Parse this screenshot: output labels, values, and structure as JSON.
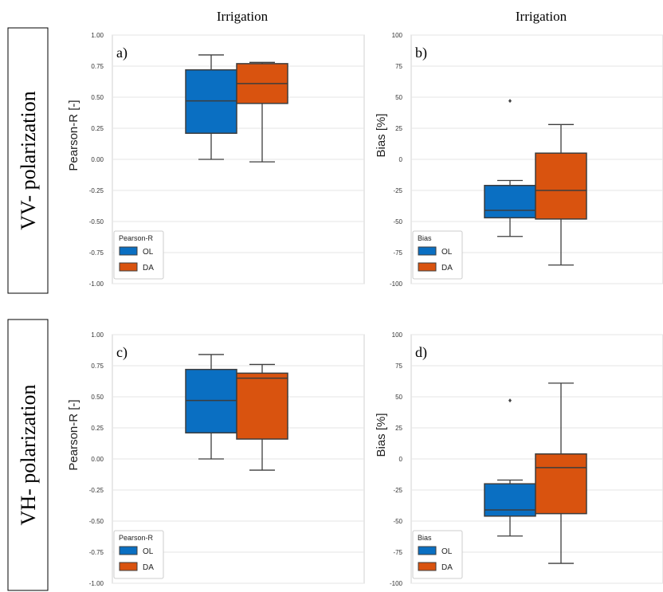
{
  "row_labels": [
    "VV- polarization",
    "VH- polarization"
  ],
  "colors": {
    "OL": "#0a6fc2",
    "DA": "#d9530f",
    "edge": "#3d3d3d",
    "grid": "#e6e6e6"
  },
  "chart_data": [
    {
      "type": "box",
      "panel_label": "a)",
      "title": "Irrigation",
      "xlabel": "",
      "ylabel": "Pearson-R [-]",
      "ylim": [
        -1.0,
        1.0
      ],
      "yticks": [
        "1.00",
        "0.75",
        "0.50",
        "0.25",
        "0.00",
        "-0.25",
        "-0.50",
        "-0.75",
        "-1.00"
      ],
      "legend": {
        "title": "Pearson-R",
        "entries": [
          "OL",
          "DA"
        ],
        "placement": "lower-left"
      },
      "series": [
        {
          "name": "OL",
          "whisker_low": 0.0,
          "q1": 0.21,
          "median": 0.47,
          "q3": 0.72,
          "whisker_high": 0.84,
          "outliers": []
        },
        {
          "name": "DA",
          "whisker_low": -0.02,
          "q1": 0.45,
          "median": 0.61,
          "q3": 0.77,
          "whisker_high": 0.78,
          "outliers": []
        }
      ]
    },
    {
      "type": "box",
      "panel_label": "b)",
      "title": "Irrigation",
      "xlabel": "",
      "ylabel": "Bias [%]",
      "ylim": [
        -100,
        100
      ],
      "yticks": [
        "100",
        "75",
        "50",
        "25",
        "0",
        "-25",
        "-50",
        "-75",
        "-100"
      ],
      "legend": {
        "title": "Bias",
        "entries": [
          "OL",
          "DA"
        ],
        "placement": "lower-left"
      },
      "series": [
        {
          "name": "OL",
          "whisker_low": -62,
          "q1": -47,
          "median": -41,
          "q3": -21,
          "whisker_high": -17,
          "outliers": [
            47
          ]
        },
        {
          "name": "DA",
          "whisker_low": -85,
          "q1": -48,
          "median": -25,
          "q3": 5,
          "whisker_high": 28,
          "outliers": []
        }
      ]
    },
    {
      "type": "box",
      "panel_label": "c)",
      "title": "",
      "xlabel": "",
      "ylabel": "Pearson-R [-]",
      "ylim": [
        -1.0,
        1.0
      ],
      "yticks": [
        "1.00",
        "0.75",
        "0.50",
        "0.25",
        "0.00",
        "-0.25",
        "-0.50",
        "-0.75",
        "-1.00"
      ],
      "legend": {
        "title": "Pearson-R",
        "entries": [
          "OL",
          "DA"
        ],
        "placement": "lower-left"
      },
      "series": [
        {
          "name": "OL",
          "whisker_low": 0.0,
          "q1": 0.21,
          "median": 0.47,
          "q3": 0.72,
          "whisker_high": 0.84,
          "outliers": []
        },
        {
          "name": "DA",
          "whisker_low": -0.09,
          "q1": 0.16,
          "median": 0.65,
          "q3": 0.69,
          "whisker_high": 0.76,
          "outliers": []
        }
      ]
    },
    {
      "type": "box",
      "panel_label": "d)",
      "title": "",
      "xlabel": "",
      "ylabel": "Bias [%]",
      "ylim": [
        -100,
        100
      ],
      "yticks": [
        "100",
        "75",
        "50",
        "25",
        "0",
        "-25",
        "-50",
        "-75",
        "-100"
      ],
      "legend": {
        "title": "Bias",
        "entries": [
          "OL",
          "DA"
        ],
        "placement": "lower-left"
      },
      "series": [
        {
          "name": "OL",
          "whisker_low": -62,
          "q1": -46,
          "median": -41,
          "q3": -20,
          "whisker_high": -17,
          "outliers": [
            47
          ]
        },
        {
          "name": "DA",
          "whisker_low": -84,
          "q1": -44,
          "median": -7,
          "q3": 4,
          "whisker_high": 61,
          "outliers": []
        }
      ]
    }
  ]
}
